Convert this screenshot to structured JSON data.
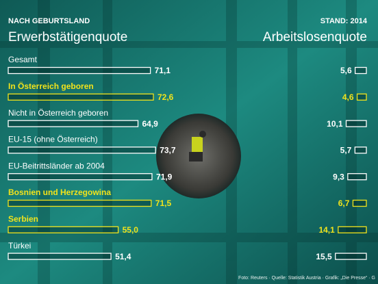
{
  "chart_data": {
    "type": "paired-bar",
    "kicker": "NACH GEBURTSLAND",
    "note": "STAND: 2014",
    "categories": [
      "Gesamt",
      "In Österreich geboren",
      "Nicht in Österreich geboren",
      "EU-15 (ohne Österreich)",
      "EU-Beitrittsländer ab 2004",
      "Bosnien und Herzegowina",
      "Serbien",
      "Türkei"
    ],
    "highlight": [
      false,
      true,
      false,
      false,
      false,
      true,
      true,
      false
    ],
    "highlight_color": "#f2e31b",
    "series": [
      {
        "name": "Erwerbstätigenquote",
        "color": "#ffffff",
        "values": [
          71.1,
          72.6,
          64.9,
          73.7,
          71.9,
          71.5,
          55.0,
          51.4
        ],
        "value_labels": [
          "71,1",
          "72,6",
          "64,9",
          "73,7",
          "71,9",
          "71,5",
          "55,0",
          "51,4"
        ]
      },
      {
        "name": "Arbeitslosenquote",
        "color": "#ffffff",
        "values": [
          5.6,
          4.6,
          10.1,
          5.7,
          9.3,
          6.7,
          14.1,
          15.5
        ],
        "value_labels": [
          "5,6",
          "4,6",
          "10,1",
          "5,7",
          "9,3",
          "6,7",
          "14,1",
          "15,5"
        ]
      }
    ],
    "source": "Foto: Reuters · Quelle: Statistik Austria · Grafik: „Die Presse“ · G"
  }
}
